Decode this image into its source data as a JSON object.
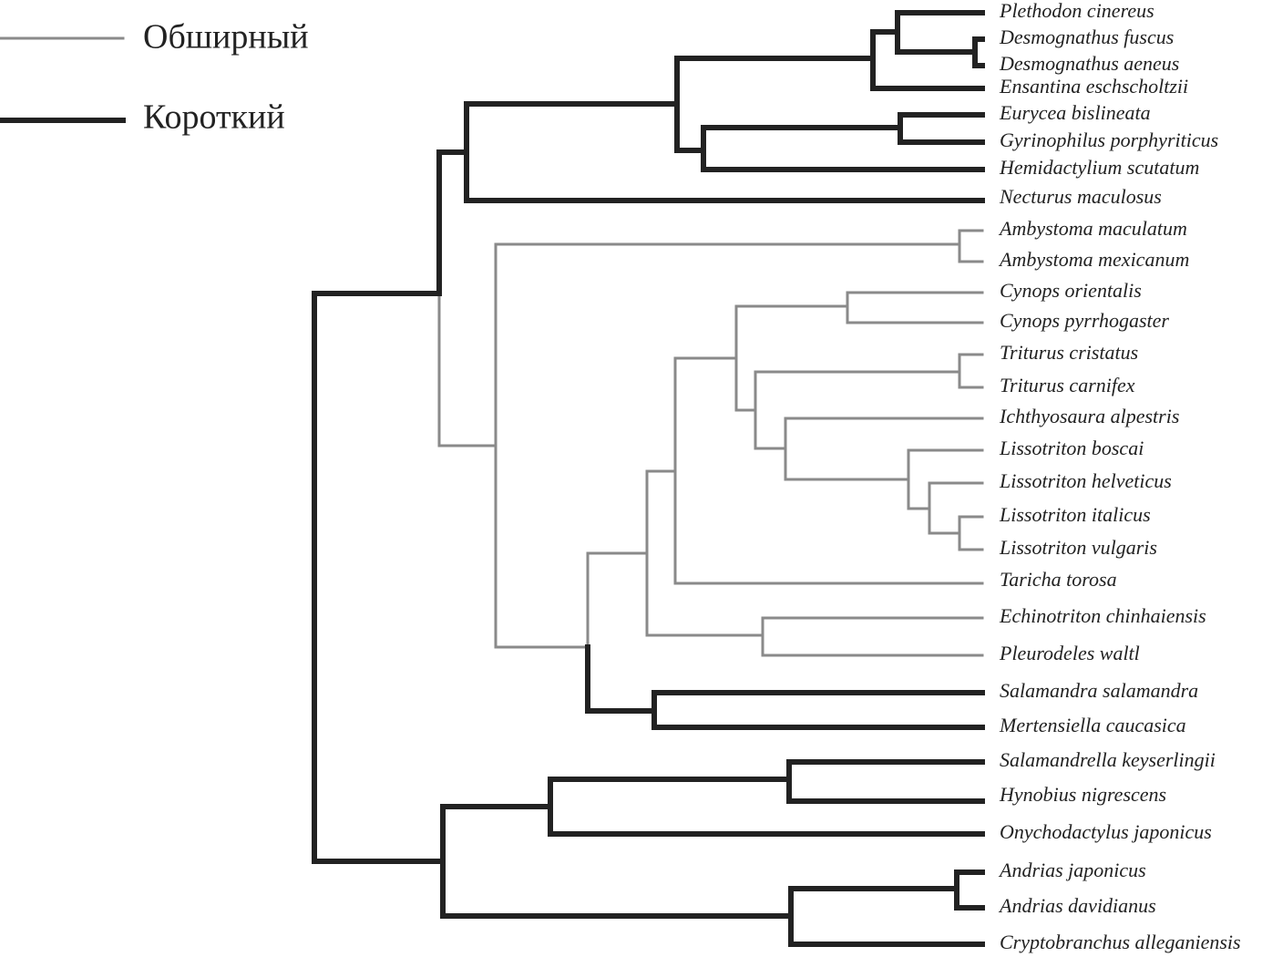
{
  "legend": [
    {
      "label": "Обширный"
    },
    {
      "label": "Короткий"
    }
  ],
  "taxa": [
    "Plethodon cinereus",
    "Desmognathus fuscus",
    "Desmognathus aeneus",
    "Ensantina eschscholtzii",
    "Eurycea bislineata",
    "Gyrinophilus porphyriticus",
    "Hemidactylium scutatum",
    "Necturus maculosus",
    "Ambystoma maculatum",
    "Ambystoma mexicanum",
    "Cynops orientalis",
    "Cynops pyrrhogaster",
    "Triturus cristatus",
    "Triturus carnifex",
    "Ichthyosaura alpestris",
    "Lissotriton boscai",
    "Lissotriton helveticus",
    "Lissotriton italicus",
    "Lissotriton vulgaris",
    "Taricha torosa",
    "Echinotriton chinhaiensis",
    "Pleurodeles waltl",
    "Salamandra salamandra",
    "Mertensiella caucasica",
    "Salamandrella keyserlingii",
    "Hynobius nigrescens",
    "Onychodactylus japonicus",
    "Andrias japonicus",
    "Andrias davidianus",
    "Cryptobranchus alleganiensis"
  ]
}
